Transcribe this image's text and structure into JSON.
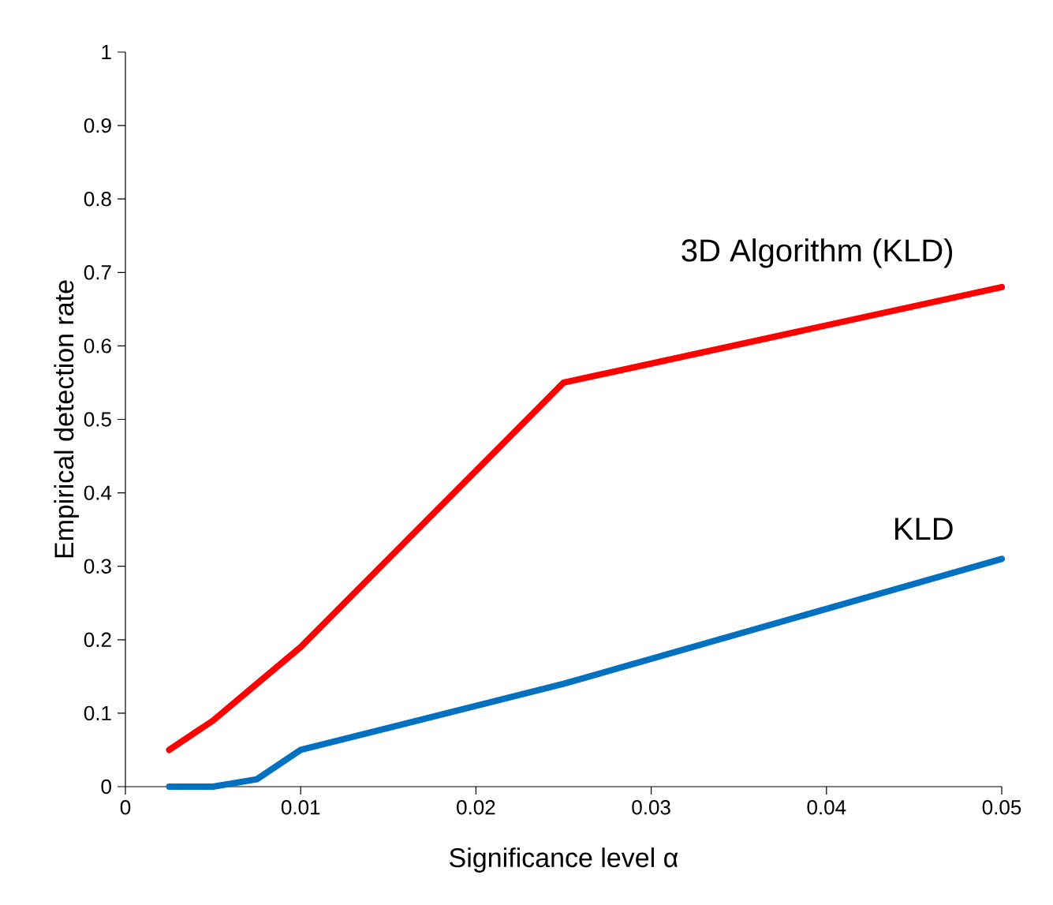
{
  "chart_data": {
    "type": "line",
    "xlabel": "Significance level α",
    "ylabel": "Empirical detection rate",
    "x": [
      0.0025,
      0.005,
      0.0075,
      0.01,
      0.025,
      0.05
    ],
    "series": [
      {
        "name": "3D Algorithm (KLD)",
        "color": "#ff0000",
        "values": [
          0.05,
          0.09,
          0.14,
          0.19,
          0.55,
          0.68
        ]
      },
      {
        "name": "KLD",
        "color": "#0070c0",
        "values": [
          0,
          0,
          0.01,
          0.05,
          0.14,
          0.31
        ]
      }
    ],
    "xlim": [
      0,
      0.05
    ],
    "ylim": [
      0,
      1
    ],
    "xticks": [
      0,
      0.01,
      0.02,
      0.03,
      0.04,
      0.05
    ],
    "yticks": [
      0,
      0.1,
      0.2,
      0.3,
      0.4,
      0.5,
      0.6,
      0.7,
      0.8,
      0.9,
      1
    ],
    "marker": "none",
    "line_style": "solid",
    "legend": false,
    "grid": false
  }
}
